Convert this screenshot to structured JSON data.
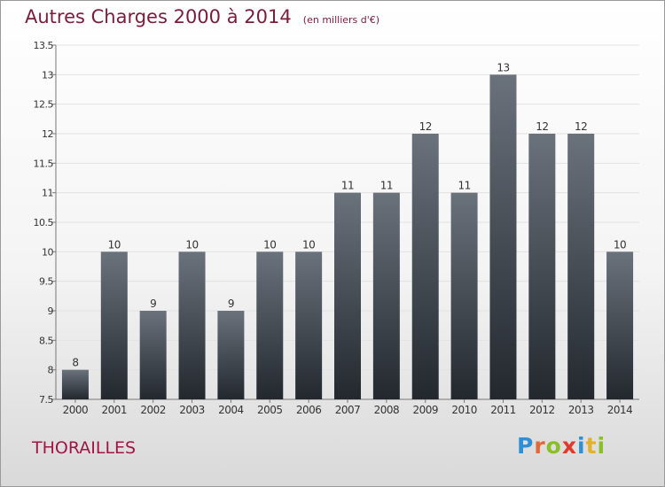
{
  "chart_data": {
    "type": "bar",
    "title": "Autres Charges 2000 à 2014",
    "subtitle": "(en milliers d'€)",
    "categories": [
      "2000",
      "2001",
      "2002",
      "2003",
      "2004",
      "2005",
      "2006",
      "2007",
      "2008",
      "2009",
      "2010",
      "2011",
      "2012",
      "2013",
      "2014"
    ],
    "values": [
      8,
      10,
      9,
      10,
      9,
      10,
      10,
      11,
      11,
      12,
      11,
      13,
      12,
      12,
      10
    ],
    "ylim": [
      7.5,
      13.5
    ],
    "yticks": [
      "7.5",
      "8",
      "8.5",
      "9",
      "9.5",
      "10",
      "10.5",
      "11",
      "11.5",
      "12",
      "12.5",
      "13",
      "13.5"
    ],
    "grid": true,
    "colors": {
      "bar_top": "#6a727c",
      "bar_bottom": "#23282e",
      "title": "#7a1c3a"
    }
  },
  "footer": {
    "commune": "THORAILLES",
    "logo": "Proxiti",
    "logo_colors": [
      "#2f8fd6",
      "#e2683a",
      "#8bbf2a",
      "#e23a2a",
      "#2f8fd6",
      "#e2b32a",
      "#8bbf2a"
    ]
  }
}
